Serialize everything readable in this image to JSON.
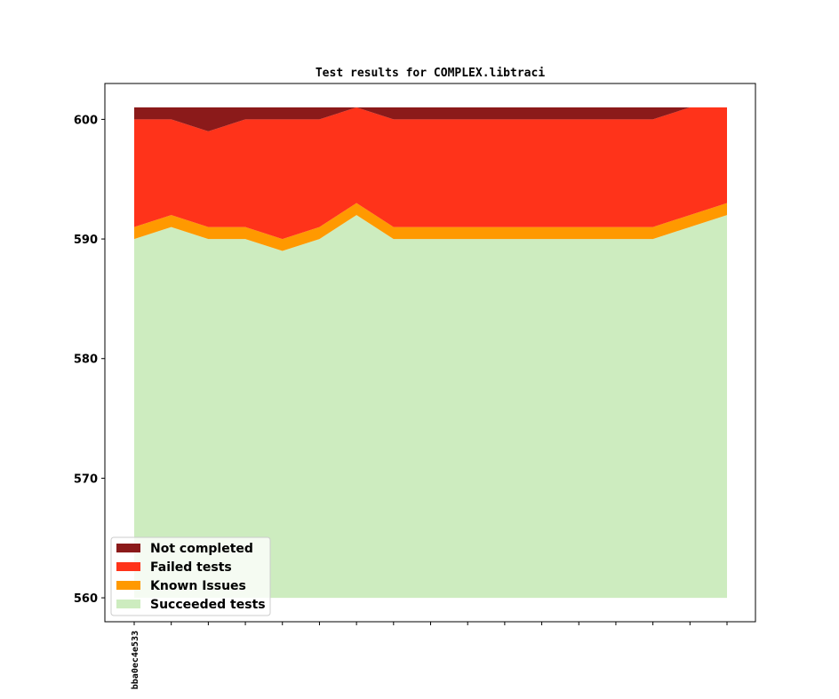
{
  "chart_data": {
    "type": "area",
    "title": "Test results for COMPLEX.libtraci",
    "xlabel": "",
    "ylabel": "",
    "ylim": [
      558.0,
      603.0
    ],
    "yticks": [
      560,
      570,
      580,
      590,
      600
    ],
    "x_tick_labels": [
      "bba0ec4e533",
      "",
      "",
      "",
      "",
      "",
      "",
      "",
      "",
      "",
      "",
      "",
      "",
      "",
      "",
      "",
      ""
    ],
    "baseline": 560,
    "series": [
      {
        "name": "Succeeded tests",
        "color": "#cdecbf",
        "values": [
          30,
          31,
          30,
          30,
          29,
          30,
          32,
          30,
          30,
          30,
          30,
          30,
          30,
          30,
          30,
          31,
          32
        ]
      },
      {
        "name": "Known Issues",
        "color": "#ff9900",
        "values": [
          1,
          1,
          1,
          1,
          1,
          1,
          1,
          1,
          1,
          1,
          1,
          1,
          1,
          1,
          1,
          1,
          1
        ]
      },
      {
        "name": "Failed tests",
        "color": "#ff331a",
        "values": [
          9,
          8,
          8,
          9,
          10,
          9,
          8,
          9,
          9,
          9,
          9,
          9,
          9,
          9,
          9,
          9,
          8
        ]
      },
      {
        "name": "Not completed",
        "color": "#8b1a1a",
        "values": [
          1,
          1,
          2,
          1,
          1,
          1,
          0,
          1,
          1,
          1,
          1,
          1,
          1,
          1,
          1,
          0,
          0
        ]
      }
    ],
    "legend": {
      "position": "lower-left",
      "items": [
        "Not completed",
        "Failed tests",
        "Known Issues",
        "Succeeded tests"
      ]
    },
    "grid": false
  }
}
